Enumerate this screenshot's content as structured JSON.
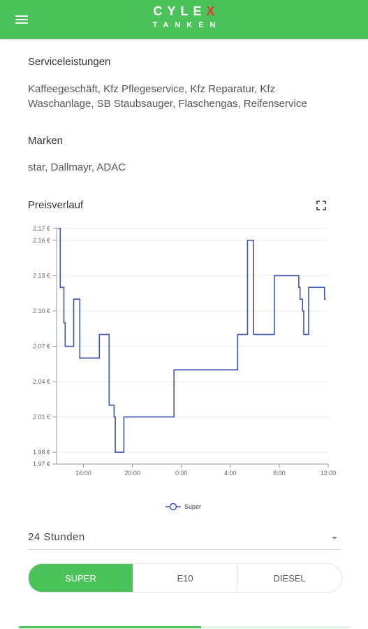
{
  "header": {
    "logo_top_a": "CYLE",
    "logo_top_b": "X",
    "logo_bottom": "TANKEN",
    "menu_icon": "hamburger-menu-icon",
    "accent_color": "#4cc25a"
  },
  "services": {
    "title": "Serviceleistungen",
    "text": "Kaffeegeschäft, Kfz Pflegeservice, Kfz Reparatur, Kfz Waschanlage, SB Staubsauger, Flaschengas, Reifenservice"
  },
  "brands": {
    "title": "Marken",
    "text": "star, Dallmayr, ADAC"
  },
  "price_history": {
    "title": "Preisverlauf",
    "expand_icon": "fullscreen-icon"
  },
  "chart_data": {
    "type": "line",
    "step": true,
    "y_ticks": [
      "2.17 €",
      "2.16 €",
      "2.13 €",
      "2.10 €",
      "2.07 €",
      "2.04 €",
      "2.01 €",
      "1.98 €",
      "1.97 €"
    ],
    "x_ticks": [
      "16:00",
      "20:00",
      "0:00",
      "4:00",
      "8:00",
      "12:00"
    ],
    "ylim": [
      1.97,
      2.17
    ],
    "grid": true,
    "legend_position": "bottom",
    "series": [
      {
        "name": "Super",
        "color": "#3f51b5",
        "points": [
          [
            13.9,
            2.17
          ],
          [
            14.1,
            2.12
          ],
          [
            14.4,
            2.09
          ],
          [
            14.5,
            2.07
          ],
          [
            15.2,
            2.11
          ],
          [
            15.7,
            2.06
          ],
          [
            17.3,
            2.08
          ],
          [
            18.1,
            2.02
          ],
          [
            18.5,
            2.01
          ],
          [
            18.6,
            1.98
          ],
          [
            19.3,
            2.01
          ],
          [
            23.4,
            2.05
          ],
          [
            28.6,
            2.08
          ],
          [
            29.4,
            2.16
          ],
          [
            29.9,
            2.08
          ],
          [
            31.6,
            2.13
          ],
          [
            33.6,
            2.12
          ],
          [
            33.7,
            2.11
          ],
          [
            33.9,
            2.1
          ],
          [
            34.0,
            2.08
          ],
          [
            34.4,
            2.12
          ],
          [
            35.7,
            2.11
          ]
        ],
        "x_end": 35.8
      }
    ]
  },
  "range": {
    "selected": "24 Stunden"
  },
  "fuel_tabs": [
    {
      "label": "SUPER",
      "active": true
    },
    {
      "label": "E10",
      "active": false
    },
    {
      "label": "DIESEL",
      "active": false
    }
  ],
  "loading": {
    "progress": 0.55
  }
}
